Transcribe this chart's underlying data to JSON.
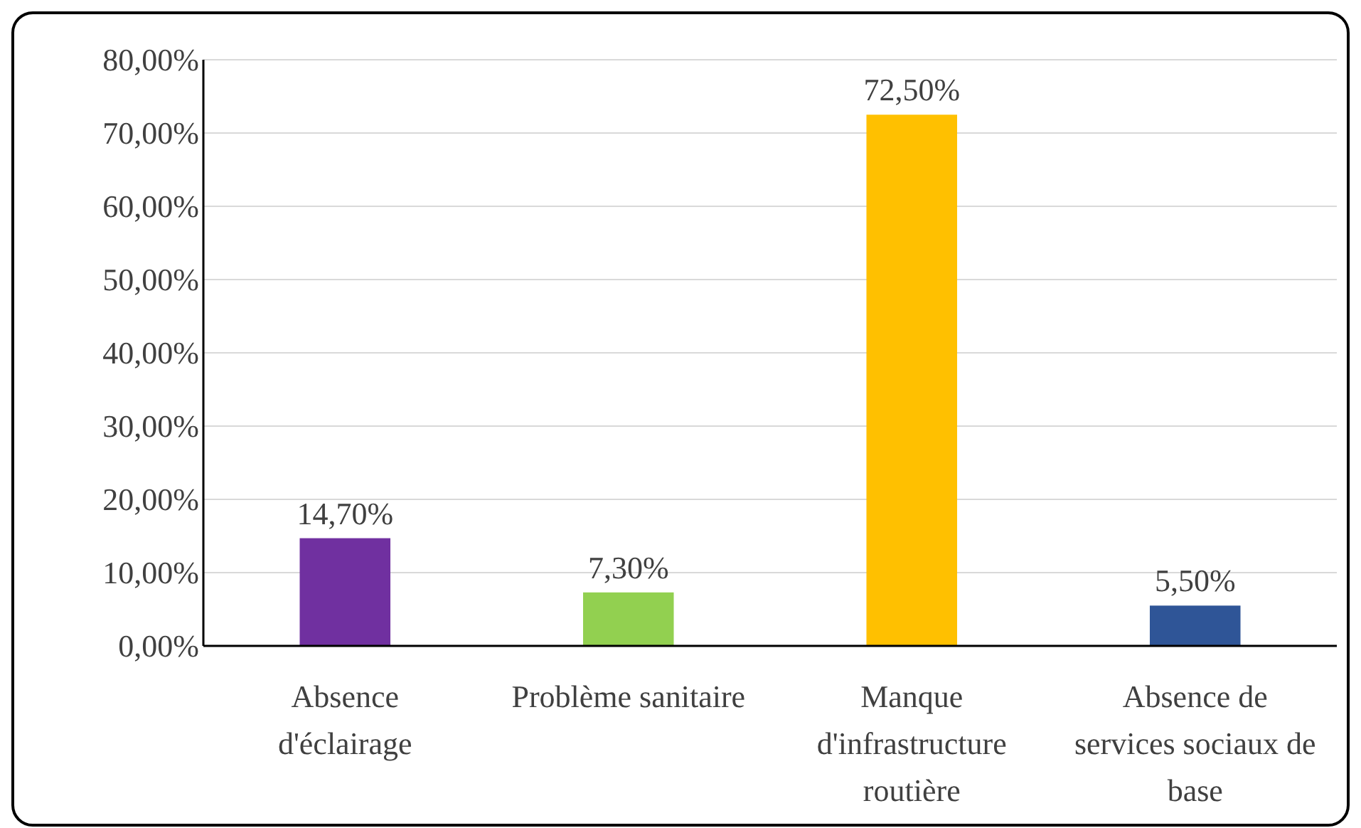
{
  "chart_data": {
    "type": "bar",
    "categories": [
      "Absence d'éclairage",
      "Problème sanitaire",
      "Manque d'infrastructure routière",
      "Absence de services sociaux de base"
    ],
    "values": [
      14.7,
      7.3,
      72.5,
      5.5
    ],
    "value_labels": [
      "14,70%",
      "7,30%",
      "72,50%",
      "5,50%"
    ],
    "colors": [
      "#7030a0",
      "#92d050",
      "#ffc000",
      "#2f5597"
    ],
    "ylim": [
      0,
      80
    ],
    "yticks": [
      {
        "value": 0,
        "label": "0,00%"
      },
      {
        "value": 10,
        "label": "10,00%"
      },
      {
        "value": 20,
        "label": "20,00%"
      },
      {
        "value": 30,
        "label": "30,00%"
      },
      {
        "value": 40,
        "label": "40,00%"
      },
      {
        "value": 50,
        "label": "50,00%"
      },
      {
        "value": 60,
        "label": "60,00%"
      },
      {
        "value": 70,
        "label": "70,00%"
      },
      {
        "value": 80,
        "label": "80,00%"
      }
    ],
    "grid": "y"
  }
}
